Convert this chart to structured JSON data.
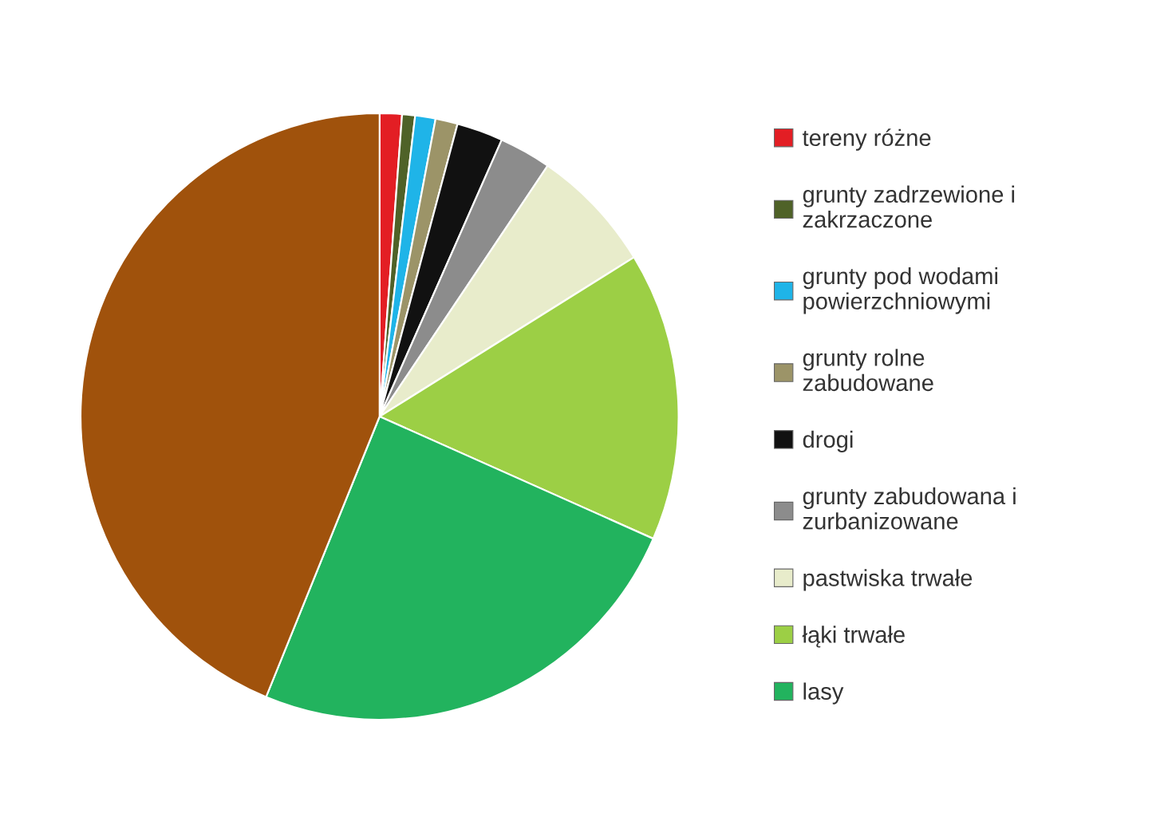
{
  "chart_data": {
    "type": "pie",
    "categories": [
      "tereny różne",
      "grunty zadrzewione i zakrzaczone",
      "grunty pod wodami powierzchniowymi",
      "grunty rolne zabudowane",
      "drogi",
      "grunty zabudowana i zurbanizowane",
      "pastwiska trwałe",
      "łąki trwałe",
      "lasy",
      null
    ],
    "values": [
      1.2,
      0.7,
      1.1,
      1.2,
      2.5,
      2.8,
      6.7,
      15.4,
      24.6,
      43.8
    ],
    "colors": [
      "#e31e24",
      "#4f6228",
      "#1fb4e8",
      "#9c9468",
      "#111111",
      "#8c8c8c",
      "#e8eccb",
      "#9ccf45",
      "#22b35e",
      "#a0520c"
    ],
    "legend": "right"
  }
}
